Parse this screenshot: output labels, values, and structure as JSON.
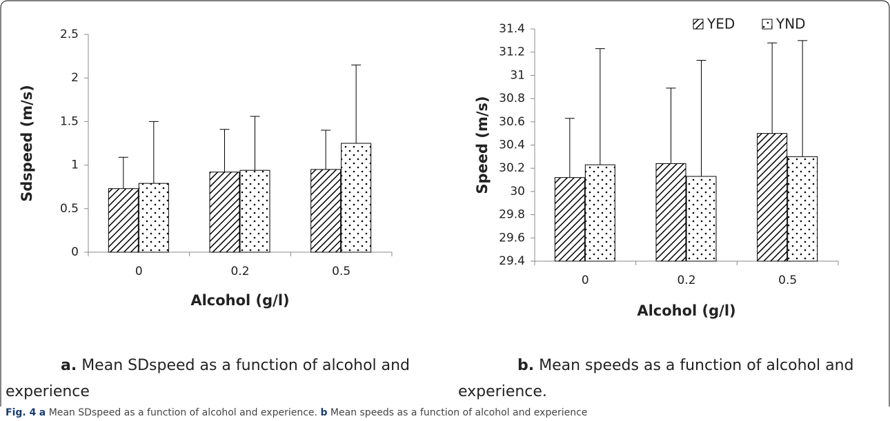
{
  "chart_data": [
    {
      "type": "bar",
      "y_label": "Sdspeed (m/s)",
      "x_label": "Alcohol (g/l)",
      "caption_label": "a.",
      "caption": "Mean SDspeed as a function of alcohol and experience",
      "categories": [
        "0",
        "0.2",
        "0.5"
      ],
      "series": [
        {
          "name": "YED",
          "color": "#000000",
          "pattern": "hatch",
          "values": [
            0.73,
            0.92,
            0.95
          ],
          "errors": [
            0.36,
            0.49,
            0.45
          ]
        },
        {
          "name": "YND",
          "color": "#000000",
          "pattern": "dots",
          "values": [
            0.79,
            0.94,
            1.25
          ],
          "errors": [
            0.71,
            0.62,
            0.9
          ]
        }
      ],
      "ylim": [
        0,
        2.5
      ],
      "yticks": [
        0,
        0.5,
        1,
        1.5,
        2,
        2.5
      ],
      "grid": false
    },
    {
      "type": "bar",
      "y_label": "Speed (m/s)",
      "x_label": "Alcohol (g/l)",
      "caption_label": "b.",
      "caption": "Mean speeds as a function of alcohol and experience.",
      "categories": [
        "0",
        "0.2",
        "0.5"
      ],
      "series": [
        {
          "name": "YED",
          "color": "#000000",
          "pattern": "hatch",
          "values": [
            30.12,
            30.24,
            30.5
          ],
          "errors": [
            0.51,
            0.65,
            0.78
          ]
        },
        {
          "name": "YND",
          "color": "#000000",
          "pattern": "dots",
          "values": [
            30.23,
            30.13,
            30.3
          ],
          "errors": [
            1.0,
            1.0,
            1.0
          ]
        }
      ],
      "ylim": [
        29.4,
        31.4
      ],
      "yticks": [
        29.4,
        29.6,
        29.8,
        30,
        30.2,
        30.4,
        30.6,
        30.8,
        31,
        31.2,
        31.4
      ],
      "grid": false,
      "legend": "top-right"
    }
  ],
  "figure_caption": {
    "label": "Fig. 4",
    "a_label": "a",
    "a_text": "Mean SDspeed as a function of alcohol and experience.",
    "b_label": "b",
    "b_text": "Mean speeds as a function of alcohol and experience"
  }
}
